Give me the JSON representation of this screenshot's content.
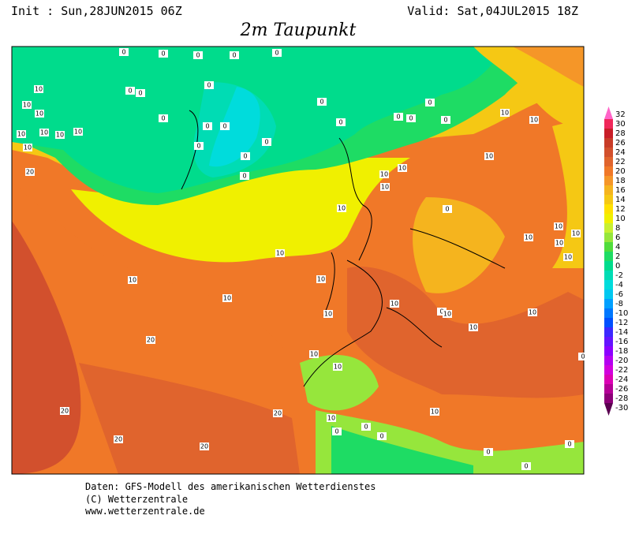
{
  "header": {
    "init": "Init : Sun,28JUN2015 06Z",
    "valid": "Valid: Sat,04JUL2015 18Z",
    "title": "2m Taupunkt"
  },
  "footer": {
    "line1": "Daten: GFS-Modell des amerikanischen Wetterdienstes",
    "line2": "(C) Wetterzentrale",
    "line3": "www.wetterzentrale.de"
  },
  "colorbar": {
    "levels": [
      32,
      30,
      28,
      26,
      24,
      22,
      20,
      18,
      16,
      14,
      12,
      10,
      8,
      6,
      4,
      2,
      0,
      -2,
      -4,
      -6,
      -8,
      -10,
      -12,
      -14,
      -16,
      -18,
      -20,
      -22,
      -24,
      -26,
      -28,
      -30
    ],
    "colors": [
      "#ff64c8",
      "#f0285a",
      "#c81e28",
      "#c83c28",
      "#d2502d",
      "#e0642d",
      "#f07828",
      "#f59628",
      "#f5b41e",
      "#f5c814",
      "#ffe100",
      "#f0f000",
      "#c8f032",
      "#96e63c",
      "#50dc3c",
      "#1edc64",
      "#00dc8c",
      "#00dcb4",
      "#00dcdc",
      "#00c8f0",
      "#00a0ff",
      "#0078ff",
      "#0050ff",
      "#3c28ff",
      "#6414ff",
      "#8c00ff",
      "#b400f0",
      "#d200dc",
      "#dc00b4",
      "#b40096",
      "#8c0078",
      "#5a0050"
    ]
  },
  "map": {
    "contour_labels": [
      0,
      0,
      0,
      0,
      0,
      0,
      0,
      0,
      0,
      0,
      0,
      0,
      0,
      0,
      0,
      0,
      0,
      0,
      0,
      0,
      0,
      0,
      0,
      0,
      0,
      0,
      0,
      0,
      0,
      0,
      10,
      10,
      10,
      10,
      10,
      10,
      10,
      10,
      10,
      10,
      10,
      10,
      10,
      10,
      10,
      10,
      10,
      10,
      10,
      10,
      10,
      10,
      10,
      10,
      10,
      10,
      10,
      10,
      10,
      10,
      10,
      10,
      10,
      20,
      20,
      20,
      20,
      20,
      20
    ]
  }
}
